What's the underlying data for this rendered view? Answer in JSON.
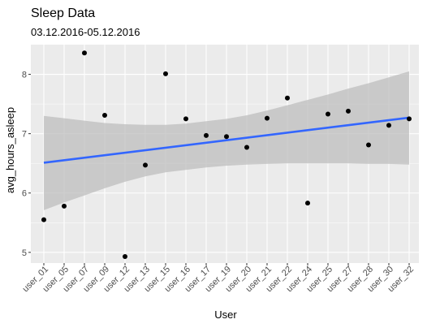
{
  "chart_data": {
    "type": "scatter",
    "title": "Sleep Data",
    "subtitle": "03.12.2016-05.12.2016",
    "xlabel": "User",
    "ylabel": "avg_hours_asleep",
    "categories": [
      "user_01",
      "user_05",
      "user_07",
      "user_09",
      "user_12",
      "user_13",
      "user_15",
      "user_16",
      "user_17",
      "user_19",
      "user_20",
      "user_21",
      "user_22",
      "user_24",
      "user_25",
      "user_27",
      "user_28",
      "user_30",
      "user_32"
    ],
    "values": [
      5.55,
      5.78,
      8.36,
      7.31,
      4.93,
      6.47,
      8.01,
      7.25,
      6.97,
      6.95,
      6.77,
      7.26,
      7.6,
      5.83,
      7.33,
      7.38,
      6.81,
      7.14,
      7.25
    ],
    "ylim": [
      4.82,
      8.5
    ],
    "yticks": [
      5,
      6,
      7,
      8
    ],
    "trend": {
      "method": "linear",
      "start": 6.51,
      "end": 7.27,
      "band_lower": [
        5.71,
        5.84,
        5.96,
        6.08,
        6.19,
        6.28,
        6.35,
        6.39,
        6.43,
        6.46,
        6.48,
        6.49,
        6.5,
        6.5,
        6.5,
        6.5,
        6.49,
        6.49,
        6.48
      ],
      "band_upper": [
        7.3,
        7.26,
        7.22,
        7.18,
        7.16,
        7.15,
        7.15,
        7.17,
        7.21,
        7.25,
        7.31,
        7.39,
        7.48,
        7.57,
        7.66,
        7.76,
        7.85,
        7.95,
        8.05
      ]
    },
    "grid": true,
    "legend": "none",
    "colors": {
      "panel": "#ebebeb",
      "grid": "#ffffff",
      "point": "#000000",
      "line": "#3366ff",
      "band": "#bebebe"
    }
  }
}
